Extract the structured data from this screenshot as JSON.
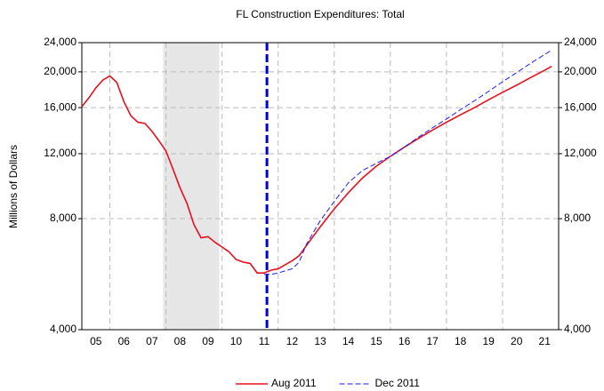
{
  "chart_data": {
    "type": "line",
    "title": "FL Construction Expenditures: Total",
    "y_label": "Millions of Dollars",
    "log_scale_y": true,
    "grid": true,
    "legend": "bottom",
    "xlim": [
      2005,
      2022
    ],
    "xticks": [
      {
        "value": 2005.5,
        "label": "05"
      },
      {
        "value": 2006.5,
        "label": "06"
      },
      {
        "value": 2007.5,
        "label": "07"
      },
      {
        "value": 2008.5,
        "label": "08"
      },
      {
        "value": 2009.5,
        "label": "09"
      },
      {
        "value": 2010.5,
        "label": "10"
      },
      {
        "value": 2011.5,
        "label": "11"
      },
      {
        "value": 2012.5,
        "label": "12"
      },
      {
        "value": 2013.5,
        "label": "13"
      },
      {
        "value": 2014.5,
        "label": "14"
      },
      {
        "value": 2015.5,
        "label": "15"
      },
      {
        "value": 2016.5,
        "label": "16"
      },
      {
        "value": 2017.5,
        "label": "17"
      },
      {
        "value": 2018.5,
        "label": "18"
      },
      {
        "value": 2019.5,
        "label": "19"
      },
      {
        "value": 2020.5,
        "label": "20"
      },
      {
        "value": 2021.5,
        "label": "21"
      }
    ],
    "xgrid": [
      2006,
      2008,
      2010,
      2012,
      2014,
      2016,
      2018,
      2020
    ],
    "ylim": [
      4000,
      24000
    ],
    "yticks": [
      {
        "value": 4000,
        "label": "4,000"
      },
      {
        "value": 8000,
        "label": "8,000"
      },
      {
        "value": 12000,
        "label": "12,000"
      },
      {
        "value": 16000,
        "label": "16,000"
      },
      {
        "value": 20000,
        "label": "20,000"
      },
      {
        "value": 24000,
        "label": "24,000"
      }
    ],
    "shaded_span": [
      2007.9,
      2009.9
    ],
    "shade_color": "#e6e6e6",
    "vline": 2011.6,
    "vline_color": "#0000cc",
    "series": [
      {
        "name": "Aug 2011",
        "color": "#e8101e",
        "dash": false,
        "x": [
          2005.0,
          2005.25,
          2005.5,
          2005.75,
          2006.0,
          2006.25,
          2006.5,
          2006.75,
          2007.0,
          2007.25,
          2007.5,
          2007.75,
          2008.0,
          2008.25,
          2008.5,
          2008.75,
          2009.0,
          2009.25,
          2009.5,
          2009.75,
          2010.0,
          2010.25,
          2010.5,
          2010.75,
          2011.0,
          2011.25,
          2011.5,
          2011.75,
          2012.0,
          2012.25,
          2012.5,
          2012.75,
          2013.0,
          2013.5,
          2014.0,
          2014.5,
          2015.0,
          2015.5,
          2016.0,
          2016.5,
          2017.0,
          2017.5,
          2018.0,
          2018.5,
          2019.0,
          2019.5,
          2020.0,
          2020.5,
          2021.0,
          2021.5,
          2021.75
        ],
        "values": [
          16100,
          17000,
          18100,
          19000,
          19500,
          18700,
          16600,
          15200,
          14600,
          14500,
          13800,
          13000,
          12200,
          10900,
          9700,
          8800,
          7700,
          7100,
          7150,
          6900,
          6700,
          6500,
          6200,
          6100,
          6050,
          5700,
          5700,
          5800,
          5850,
          6000,
          6150,
          6350,
          6750,
          7600,
          8500,
          9400,
          10300,
          11100,
          11800,
          12500,
          13200,
          13900,
          14600,
          15300,
          16000,
          16800,
          17600,
          18400,
          19300,
          20200,
          20700
        ]
      },
      {
        "name": "Dec 2011",
        "color": "#1a1aff",
        "dash": true,
        "x": [
          2011.5,
          2011.75,
          2012.0,
          2012.5,
          2012.75,
          2013.0,
          2013.5,
          2014.0,
          2014.5,
          2015.0,
          2015.5,
          2016.0,
          2016.5,
          2017.0,
          2017.5,
          2018.0,
          2018.5,
          2019.0,
          2019.5,
          2020.0,
          2020.5,
          2021.0,
          2021.75
        ],
        "values": [
          5650,
          5650,
          5700,
          5850,
          6100,
          6800,
          7900,
          8900,
          10000,
          10800,
          11300,
          11800,
          12500,
          13300,
          14100,
          14900,
          15800,
          16700,
          17700,
          18800,
          19900,
          21100,
          22900
        ]
      }
    ]
  }
}
